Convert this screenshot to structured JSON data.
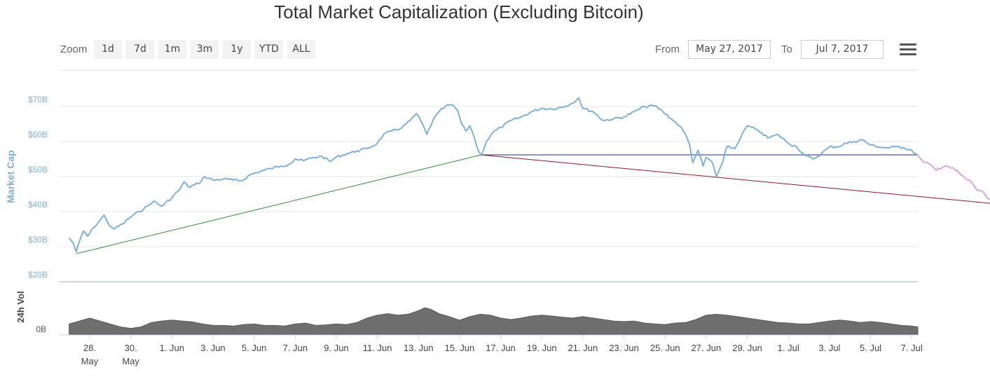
{
  "title": "Total Market Capitalization (Excluding Bitcoin)",
  "toolbar": {
    "zoom_label": "Zoom",
    "zoom_buttons": [
      "1d",
      "7d",
      "1m",
      "3m",
      "1y",
      "YTD",
      "ALL"
    ],
    "from_label": "From",
    "from_value": "May 27, 2017",
    "to_label": "To",
    "to_value": "Jul 7, 2017"
  },
  "colors": {
    "series": "#7fb0d8",
    "volume": "#6e6e6e",
    "support_line": "#2e8b2e",
    "horizontal_line": "#1a2a7a",
    "downtrend_line": "#8b1a2a",
    "projection": "#d9a6e0",
    "grid": "#e6e6e6"
  },
  "chart_data": [
    {
      "type": "line",
      "title": "Total Market Capitalization (Excluding Bitcoin)",
      "ylabel": "Market Cap",
      "y_unit": "B USD",
      "ylim": [
        20,
        70
      ],
      "yticks": [
        "$20B",
        "$30B",
        "$40B",
        "$50B",
        "$60B",
        "$70B"
      ],
      "ytick_values": [
        20,
        30,
        40,
        50,
        60,
        70
      ],
      "xlim_days": [
        -0.5,
        41.3
      ],
      "x_ticks": [
        {
          "day": 1,
          "label": "28.",
          "sub": "May"
        },
        {
          "day": 3,
          "label": "30.",
          "sub": "May"
        },
        {
          "day": 5,
          "label": "1. Jun"
        },
        {
          "day": 7,
          "label": "3. Jun"
        },
        {
          "day": 9,
          "label": "5. Jun"
        },
        {
          "day": 11,
          "label": "7. Jun"
        },
        {
          "day": 13,
          "label": "9. Jun"
        },
        {
          "day": 15,
          "label": "11. Jun"
        },
        {
          "day": 17,
          "label": "13. Jun"
        },
        {
          "day": 19,
          "label": "15. Jun"
        },
        {
          "day": 21,
          "label": "17. Jun"
        },
        {
          "day": 23,
          "label": "19. Jun"
        },
        {
          "day": 25,
          "label": "21. Jun"
        },
        {
          "day": 27,
          "label": "23. Jun"
        },
        {
          "day": 29,
          "label": "25. Jun"
        },
        {
          "day": 31,
          "label": "27. Jun"
        },
        {
          "day": 33,
          "label": "29. Jun"
        },
        {
          "day": 35,
          "label": "1. Jul"
        },
        {
          "day": 37,
          "label": "3. Jul"
        },
        {
          "day": 39,
          "label": "5. Jul"
        },
        {
          "day": 41,
          "label": "7. Jul"
        }
      ],
      "series": [
        {
          "name": "Market Cap",
          "points": [
            [
              0.0,
              32.5
            ],
            [
              0.2,
              31.0
            ],
            [
              0.35,
              28.5
            ],
            [
              0.5,
              31.5
            ],
            [
              0.7,
              34.5
            ],
            [
              0.9,
              33.0
            ],
            [
              1.2,
              35.5
            ],
            [
              1.5,
              37.5
            ],
            [
              1.7,
              39.0
            ],
            [
              1.9,
              36.5
            ],
            [
              2.2,
              35.0
            ],
            [
              2.6,
              36.5
            ],
            [
              3.0,
              38.5
            ],
            [
              3.4,
              40.0
            ],
            [
              3.8,
              41.5
            ],
            [
              4.1,
              43.0
            ],
            [
              4.5,
              41.5
            ],
            [
              5.0,
              44.0
            ],
            [
              5.4,
              46.5
            ],
            [
              5.6,
              48.5
            ],
            [
              5.8,
              47.0
            ],
            [
              6.3,
              48.0
            ],
            [
              6.6,
              50.0
            ],
            [
              7.0,
              49.0
            ],
            [
              7.5,
              49.3
            ],
            [
              8.0,
              49.0
            ],
            [
              8.4,
              48.8
            ],
            [
              8.8,
              50.5
            ],
            [
              9.3,
              51.5
            ],
            [
              9.8,
              52.3
            ],
            [
              10.3,
              53.0
            ],
            [
              10.7,
              53.5
            ],
            [
              11.0,
              55.0
            ],
            [
              11.4,
              54.5
            ],
            [
              11.8,
              55.3
            ],
            [
              12.3,
              55.8
            ],
            [
              12.7,
              54.3
            ],
            [
              13.0,
              55.6
            ],
            [
              13.5,
              56.5
            ],
            [
              14.0,
              57.3
            ],
            [
              14.5,
              58.0
            ],
            [
              15.0,
              59.5
            ],
            [
              15.3,
              62.0
            ],
            [
              15.7,
              63.0
            ],
            [
              16.2,
              64.0
            ],
            [
              16.6,
              66.0
            ],
            [
              16.9,
              68.0
            ],
            [
              17.2,
              65.0
            ],
            [
              17.4,
              62.0
            ],
            [
              17.7,
              66.0
            ],
            [
              18.0,
              68.5
            ],
            [
              18.3,
              70.0
            ],
            [
              18.6,
              70.5
            ],
            [
              18.9,
              69.0
            ],
            [
              19.1,
              65.0
            ],
            [
              19.3,
              63.0
            ],
            [
              19.5,
              64.5
            ],
            [
              19.7,
              61.5
            ],
            [
              19.9,
              57.5
            ],
            [
              20.05,
              56.0
            ],
            [
              20.3,
              60.0
            ],
            [
              20.6,
              62.5
            ],
            [
              21.0,
              64.0
            ],
            [
              21.5,
              66.0
            ],
            [
              22.0,
              67.0
            ],
            [
              22.5,
              68.5
            ],
            [
              23.0,
              69.5
            ],
            [
              23.5,
              69.3
            ],
            [
              24.0,
              69.8
            ],
            [
              24.5,
              71.0
            ],
            [
              24.8,
              72.5
            ],
            [
              25.0,
              69.5
            ],
            [
              25.5,
              68.5
            ],
            [
              26.0,
              66.0
            ],
            [
              26.5,
              66.5
            ],
            [
              27.0,
              67.0
            ],
            [
              27.5,
              68.5
            ],
            [
              28.0,
              70.0
            ],
            [
              28.5,
              70.2
            ],
            [
              28.9,
              68.5
            ],
            [
              29.3,
              66.5
            ],
            [
              29.7,
              64.5
            ],
            [
              30.0,
              62.0
            ],
            [
              30.2,
              59.0
            ],
            [
              30.35,
              54.0
            ],
            [
              30.6,
              57.5
            ],
            [
              30.85,
              53.0
            ],
            [
              31.0,
              55.5
            ],
            [
              31.3,
              54.0
            ],
            [
              31.5,
              50.0
            ],
            [
              31.8,
              54.0
            ],
            [
              32.0,
              58.5
            ],
            [
              32.4,
              58.0
            ],
            [
              32.7,
              61.5
            ],
            [
              33.0,
              64.5
            ],
            [
              33.4,
              63.5
            ],
            [
              33.7,
              62.5
            ],
            [
              34.0,
              61.0
            ],
            [
              34.5,
              62.0
            ],
            [
              35.0,
              59.5
            ],
            [
              35.4,
              58.5
            ],
            [
              35.8,
              56.0
            ],
            [
              36.2,
              55.0
            ],
            [
              36.6,
              56.5
            ],
            [
              37.0,
              58.5
            ],
            [
              37.4,
              58.5
            ],
            [
              37.8,
              59.5
            ],
            [
              38.2,
              60.0
            ],
            [
              38.6,
              60.5
            ],
            [
              39.0,
              59.0
            ],
            [
              39.4,
              58.5
            ],
            [
              39.8,
              58.2
            ],
            [
              40.2,
              58.5
            ],
            [
              40.6,
              58.3
            ],
            [
              41.0,
              57.5
            ],
            [
              41.3,
              56.0
            ]
          ]
        },
        {
          "name": "Projection",
          "points": [
            [
              41.3,
              56.0
            ],
            [
              41.6,
              54.0
            ],
            [
              41.9,
              53.5
            ],
            [
              42.2,
              51.8
            ],
            [
              42.6,
              53.0
            ],
            [
              43.0,
              52.5
            ],
            [
              43.3,
              51.0
            ],
            [
              43.6,
              49.5
            ],
            [
              43.9,
              48.5
            ],
            [
              44.2,
              46.0
            ],
            [
              44.5,
              45.5
            ],
            [
              44.8,
              43.5
            ],
            [
              45.0,
              43.0
            ]
          ]
        }
      ],
      "trend_lines": [
        {
          "name": "support",
          "from": [
            0.35,
            28.0
          ],
          "to": [
            20.05,
            56.2
          ]
        },
        {
          "name": "horizontal",
          "from": [
            20.05,
            56.2
          ],
          "to": [
            41.3,
            56.2
          ]
        },
        {
          "name": "downtrend",
          "from": [
            20.05,
            56.2
          ],
          "to": [
            45.5,
            42.0
          ]
        }
      ]
    },
    {
      "type": "area",
      "ylabel": "24h Vol",
      "yticks": [
        "0B"
      ],
      "ytick_values": [
        0
      ],
      "ylim": [
        0,
        10
      ],
      "series": [
        {
          "name": "24h Vol",
          "points": [
            [
              0.0,
              3.5
            ],
            [
              0.5,
              4.5
            ],
            [
              1.0,
              5.5
            ],
            [
              1.5,
              4.5
            ],
            [
              2.0,
              3.5
            ],
            [
              2.5,
              2.5
            ],
            [
              3.0,
              2.0
            ],
            [
              3.5,
              2.5
            ],
            [
              4.0,
              4.0
            ],
            [
              4.5,
              4.5
            ],
            [
              5.0,
              4.8
            ],
            [
              5.5,
              4.5
            ],
            [
              6.0,
              4.2
            ],
            [
              6.5,
              3.5
            ],
            [
              7.0,
              3.0
            ],
            [
              7.5,
              3.0
            ],
            [
              8.0,
              2.8
            ],
            [
              8.5,
              3.3
            ],
            [
              9.0,
              3.5
            ],
            [
              9.5,
              3.0
            ],
            [
              10.0,
              3.0
            ],
            [
              10.5,
              2.8
            ],
            [
              11.0,
              3.5
            ],
            [
              11.5,
              3.8
            ],
            [
              12.0,
              3.0
            ],
            [
              12.5,
              3.2
            ],
            [
              13.0,
              3.5
            ],
            [
              13.5,
              3.3
            ],
            [
              14.0,
              4.0
            ],
            [
              14.5,
              5.5
            ],
            [
              15.0,
              6.5
            ],
            [
              15.5,
              7.0
            ],
            [
              16.0,
              6.5
            ],
            [
              16.5,
              6.8
            ],
            [
              17.0,
              8.0
            ],
            [
              17.3,
              9.0
            ],
            [
              17.6,
              8.5
            ],
            [
              18.0,
              7.0
            ],
            [
              18.5,
              6.0
            ],
            [
              19.0,
              4.8
            ],
            [
              19.5,
              6.0
            ],
            [
              20.0,
              6.8
            ],
            [
              20.5,
              6.5
            ],
            [
              21.0,
              5.5
            ],
            [
              21.5,
              5.0
            ],
            [
              22.0,
              5.5
            ],
            [
              22.5,
              6.2
            ],
            [
              23.0,
              6.5
            ],
            [
              23.5,
              6.2
            ],
            [
              24.0,
              5.8
            ],
            [
              24.5,
              5.5
            ],
            [
              25.0,
              6.0
            ],
            [
              25.5,
              5.5
            ],
            [
              26.0,
              5.0
            ],
            [
              26.5,
              4.5
            ],
            [
              27.0,
              4.3
            ],
            [
              27.5,
              4.5
            ],
            [
              28.0,
              3.8
            ],
            [
              28.5,
              3.5
            ],
            [
              29.0,
              3.3
            ],
            [
              29.5,
              3.8
            ],
            [
              30.0,
              4.0
            ],
            [
              30.5,
              5.0
            ],
            [
              31.0,
              6.5
            ],
            [
              31.5,
              6.8
            ],
            [
              32.0,
              6.5
            ],
            [
              32.5,
              6.0
            ],
            [
              33.0,
              5.5
            ],
            [
              33.5,
              5.0
            ],
            [
              34.0,
              4.5
            ],
            [
              34.5,
              4.0
            ],
            [
              35.0,
              3.8
            ],
            [
              35.5,
              3.5
            ],
            [
              36.0,
              3.5
            ],
            [
              36.5,
              4.0
            ],
            [
              37.0,
              4.5
            ],
            [
              37.5,
              4.8
            ],
            [
              38.0,
              4.5
            ],
            [
              38.5,
              4.0
            ],
            [
              39.0,
              4.3
            ],
            [
              39.5,
              4.0
            ],
            [
              40.0,
              3.5
            ],
            [
              40.5,
              3.0
            ],
            [
              41.0,
              2.8
            ],
            [
              41.3,
              2.5
            ]
          ]
        }
      ]
    }
  ]
}
